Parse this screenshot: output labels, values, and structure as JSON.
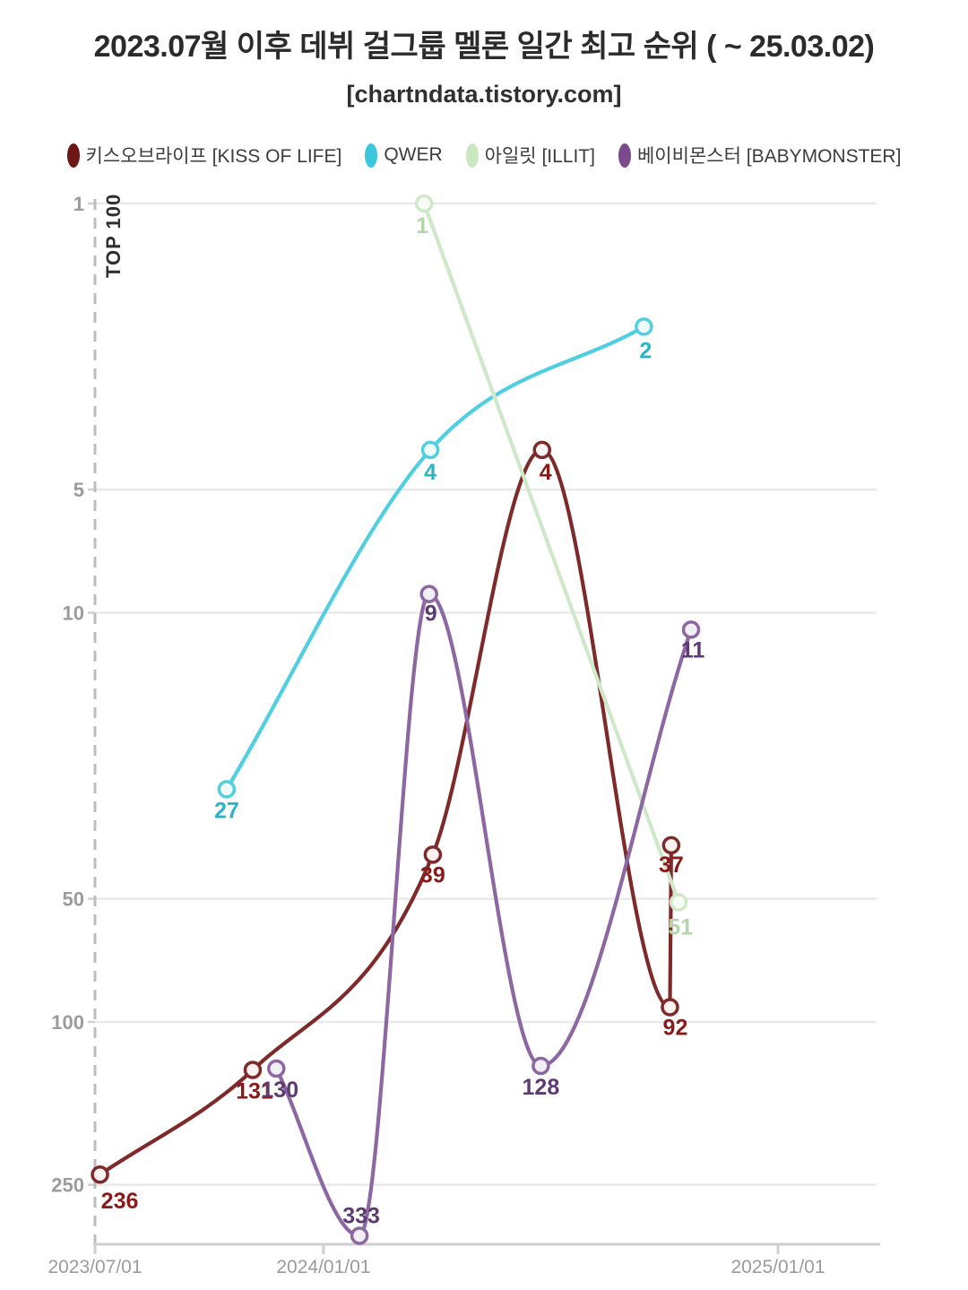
{
  "title": "2023.07월 이후 데뷔 걸그룹 멜론 일간 최고 순위 ( ~ 25.03.02)",
  "subtitle": "[chartndata.tistory.com]",
  "chart_data": {
    "type": "line",
    "title": "2023.07월 이후 데뷔 걸그룹 멜론 일간 최고 순위 ( ~ 25.03.02)",
    "subtitle": "[chartndata.tistory.com]",
    "legend_position": "top",
    "grid": true,
    "x_axis": {
      "unit": "date (days since 2023-07-01)",
      "tick_days": [
        0,
        184,
        550
      ],
      "tick_labels": [
        "2023/07/01",
        "2024/01/01",
        "2025/01/01"
      ]
    },
    "y_axis": {
      "label": "TOP 100",
      "scale": "log",
      "inverted": true,
      "ticks": [
        1,
        5,
        10,
        50,
        100,
        250
      ]
    },
    "series": [
      {
        "name": "키스오브라이프 [KISS OF LIFE]",
        "line_color": "#7E2A2A",
        "label_color": "#8A1A1A",
        "legend_color": "#6E1515",
        "marker_fill": "#FAF1F1",
        "points": [
          {
            "day": 4,
            "rank": 236,
            "label": "236",
            "ldx": 22,
            "ldy": 38
          },
          {
            "day": 127,
            "rank": 131,
            "label": "131",
            "ldx": 2,
            "ldy": 32
          },
          {
            "day": 272,
            "rank": 39,
            "label": "39",
            "ldx": 0,
            "ldy": 31
          },
          {
            "day": 360,
            "rank": 4,
            "label": "4",
            "ldx": 4,
            "ldy": 33
          },
          {
            "day": 463,
            "rank": 92,
            "label": "92",
            "ldx": 6,
            "ldy": 31
          },
          {
            "day": 464,
            "rank": 37,
            "label": "37",
            "ldx": 0,
            "ldy": 30
          }
        ]
      },
      {
        "name": "QWER",
        "line_color": "#4FCFE0",
        "label_color": "#2BB4C8",
        "legend_color": "#3BC8DD",
        "marker_fill": "#F0FBFD",
        "points": [
          {
            "day": 106,
            "rank": 27,
            "label": "27",
            "ldx": 0,
            "ldy": 32
          },
          {
            "day": 270,
            "rank": 4,
            "label": "4",
            "ldx": 0,
            "ldy": 33
          },
          {
            "day": 442,
            "rank": 2,
            "label": "2",
            "ldx": 2,
            "ldy": 35
          }
        ]
      },
      {
        "name": "아일릿 [ILLIT]",
        "line_color": "#CFE9C8",
        "label_color": "#AFD8A6",
        "legend_color": "#CBE7C2",
        "marker_fill": "#F7FBF5",
        "points": [
          {
            "day": 265,
            "rank": 1,
            "label": "1",
            "ldx": -2,
            "ldy": 33
          },
          {
            "day": 470,
            "rank": 51,
            "label": "51",
            "ldx": 2,
            "ldy": 36
          }
        ]
      },
      {
        "name": "베이비몬스터 [BABYMONSTER]",
        "line_color": "#8C67A1",
        "label_color": "#5D3B72",
        "legend_color": "#7A4A8C",
        "marker_fill": "#F2EEF6",
        "points": [
          {
            "day": 146,
            "rank": 130,
            "label": "130",
            "ldx": 4,
            "ldy": 32
          },
          {
            "day": 213,
            "rank": 333,
            "label": "333",
            "ldx": 2,
            "ldy": -14
          },
          {
            "day": 269,
            "rank": 9,
            "label": "9",
            "ldx": 2,
            "ldy": 30
          },
          {
            "day": 359,
            "rank": 128,
            "label": "128",
            "ldx": 0,
            "ldy": 32
          },
          {
            "day": 480,
            "rank": 11,
            "label": "11",
            "ldx": 2,
            "ldy": 31
          }
        ]
      }
    ]
  },
  "colors": {
    "background": "#FFFFFF",
    "grid": "#E9E9E9",
    "baseline": "#CFCFCF",
    "dashed_axis": "#BDBDBD",
    "tick_stub": "#D0D0D0",
    "tick_text": "#9B9B9B",
    "axis_note_text": "#2F2F2F",
    "title_text": "#2B2B2B",
    "legend_text": "#3C3C3C"
  }
}
